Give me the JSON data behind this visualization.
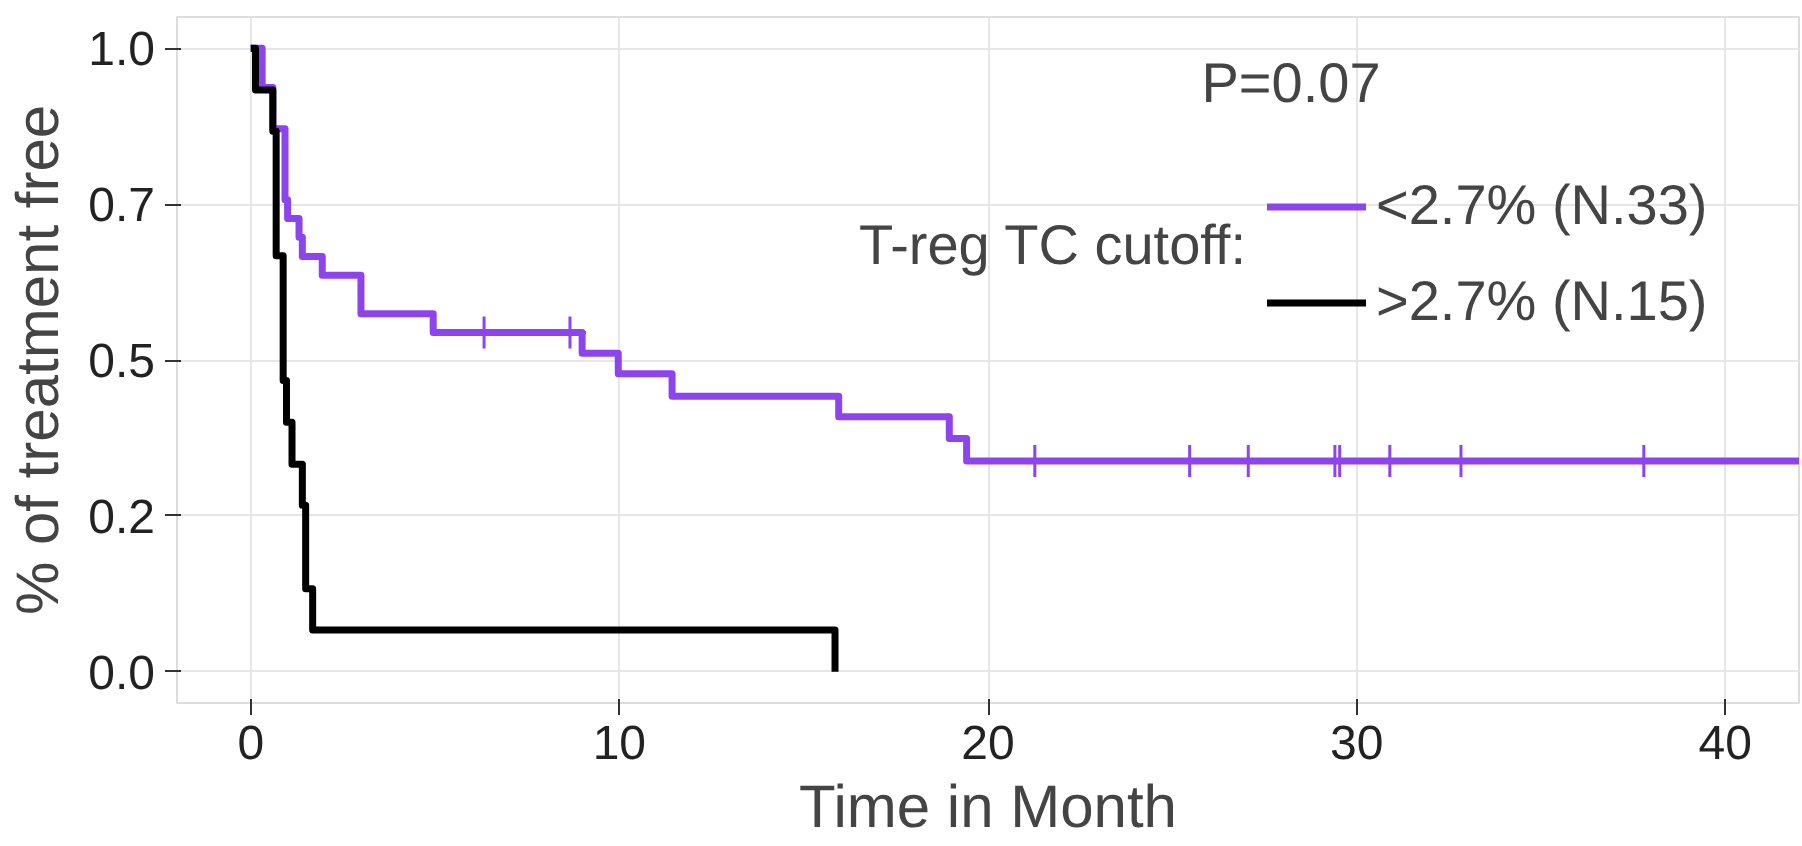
{
  "chart_data": {
    "type": "step",
    "xlabel": "Time in Month",
    "ylabel": "% of treatment free",
    "legend_title": "T-reg TC cutoff:",
    "annotations": [
      "P=0.07"
    ],
    "xlim": [
      -2,
      42
    ],
    "ylim": [
      -0.05,
      1.05
    ],
    "xticks": [
      0,
      10,
      20,
      30,
      40
    ],
    "yticks": [
      {
        "value": 0,
        "label": "0.0"
      },
      {
        "value": 0.25,
        "label": "0.2"
      },
      {
        "value": 0.5,
        "label": "0.5"
      },
      {
        "value": 0.75,
        "label": "0.7"
      },
      {
        "value": 1,
        "label": "1.0"
      }
    ],
    "grid": true,
    "legend": "top right",
    "series": [
      {
        "name": "<2.7% (N.33)",
        "color": "#8e44ec",
        "x": [
          0,
          0.31,
          0.6,
          0.93,
          1.0,
          1.31,
          1.4,
          1.94,
          2.99,
          4.95,
          8.99,
          9.97,
          11.43,
          15.95,
          18.95,
          19.42,
          42
        ],
        "values": [
          1,
          0.937,
          0.871,
          0.757,
          0.727,
          0.697,
          0.666,
          0.636,
          0.574,
          0.544,
          0.511,
          0.478,
          0.442,
          0.409,
          0.374,
          0.338,
          0.338
        ]
      },
      {
        "name": ">2.7% (N.15)",
        "color": "#000000",
        "x": [
          0,
          0.13,
          0.6,
          0.69,
          0.88,
          0.97,
          1.12,
          1.4,
          1.49,
          1.68,
          15.85
        ],
        "values": [
          1,
          0.933,
          0.867,
          0.667,
          0.467,
          0.4,
          0.333,
          0.267,
          0.133,
          0.067,
          0
        ]
      },
      {
        "type": "scatter",
        "marker": "cross",
        "color": "#8e44ec",
        "x": [
          6.33,
          8.66,
          21.27,
          25.47,
          27.06,
          29.41,
          29.54,
          30.9,
          32.83,
          37.79
        ],
        "values": [
          0.544,
          0.544,
          0.338,
          0.338,
          0.338,
          0.338,
          0.338,
          0.338,
          0.338,
          0.338
        ]
      }
    ]
  }
}
